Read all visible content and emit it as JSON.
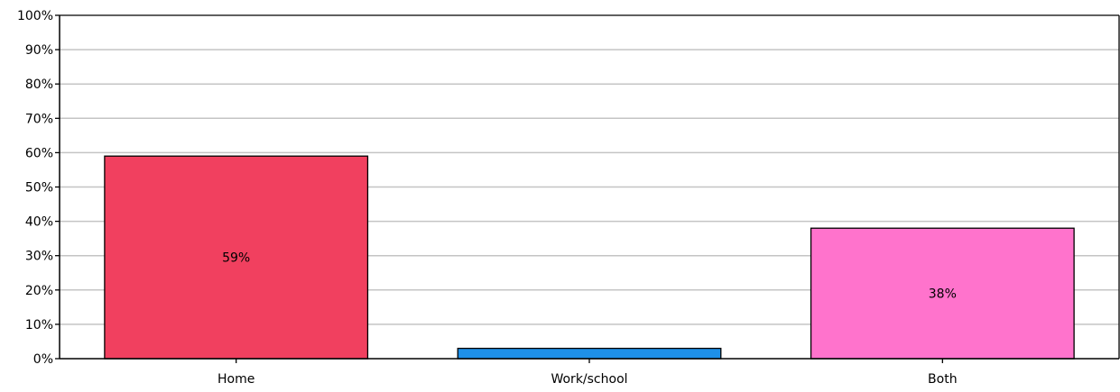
{
  "chart_data": {
    "type": "bar",
    "categories": [
      "Home",
      "Work/school",
      "Both"
    ],
    "values": [
      59,
      3,
      38
    ],
    "data_labels": [
      "59%",
      "",
      "38%"
    ],
    "colors": [
      "#f1405f",
      "#1e90e8",
      "#ff73cc"
    ],
    "title": "",
    "xlabel": "",
    "ylabel": "",
    "ylim": [
      0,
      100
    ],
    "yticks": [
      "0%",
      "10%",
      "20%",
      "30%",
      "40%",
      "50%",
      "60%",
      "70%",
      "80%",
      "90%",
      "100%"
    ],
    "grid": true,
    "legend": "none"
  }
}
